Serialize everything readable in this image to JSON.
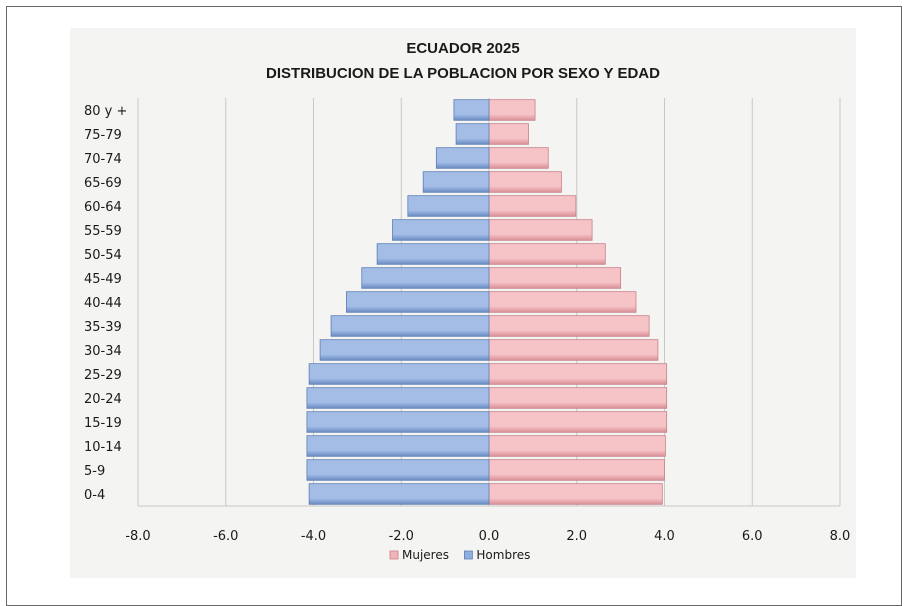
{
  "chart_data": {
    "type": "bar",
    "orientation": "horizontal",
    "title": [
      "ECUADOR 2025",
      "DISTRIBUCION DE LA POBLACION POR SEXO Y EDAD"
    ],
    "categories": [
      "0-4",
      "5-9",
      "10-14",
      "15-19",
      "20-24",
      "25-29",
      "30-34",
      "35-39",
      "40-44",
      "45-49",
      "50-54",
      "55-59",
      "60-64",
      "65-69",
      "70-74",
      "75-79",
      "80 y +"
    ],
    "series": [
      {
        "name": "Mujeres",
        "color": "#f2b3b8",
        "values": [
          3.95,
          4.0,
          4.02,
          4.05,
          4.05,
          4.05,
          3.85,
          3.65,
          3.35,
          3.0,
          2.65,
          2.35,
          1.98,
          1.65,
          1.35,
          0.9,
          1.05
        ]
      },
      {
        "name": "Hombres",
        "color": "#8eaede",
        "values": [
          -4.1,
          -4.15,
          -4.15,
          -4.15,
          -4.15,
          -4.1,
          -3.85,
          -3.6,
          -3.25,
          -2.9,
          -2.55,
          -2.2,
          -1.85,
          -1.5,
          -1.2,
          -0.75,
          -0.8
        ]
      }
    ],
    "xlim": [
      -8,
      8
    ],
    "xticks": [
      "-8.0",
      "-6.0",
      "-4.0",
      "-2.0",
      "0.0",
      "2.0",
      "4.0",
      "6.0",
      "8.0"
    ],
    "xtick_values": [
      -8,
      -6,
      -4,
      -2,
      0,
      2,
      4,
      6,
      8
    ],
    "grid": true,
    "legend_position": "bottom"
  }
}
